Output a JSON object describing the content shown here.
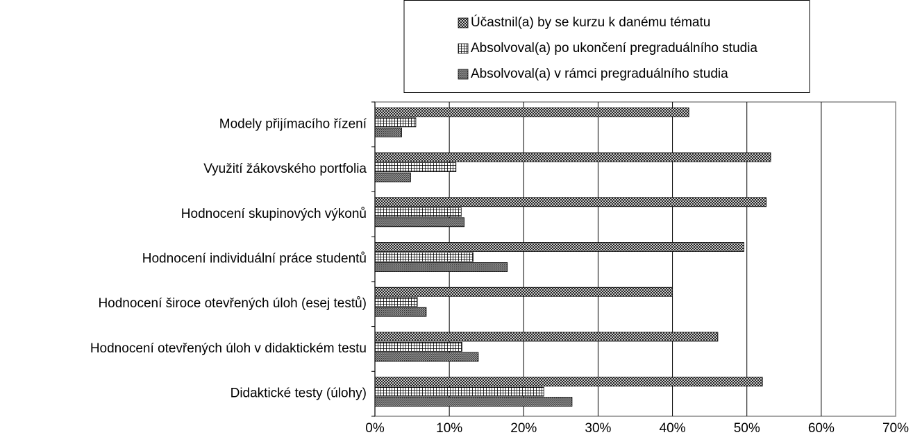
{
  "chart_data": {
    "type": "bar",
    "orientation": "horizontal",
    "categories": [
      "Modely přijímacího řízení",
      "Využití žákovského portfolia",
      "Hodnocení skupinových výkonů",
      "Hodnocení individuální práce studentů",
      "Hodnocení široce otevřených úloh (esej testů)",
      "Hodnocení otevřených úloh v didaktickém testu",
      "Didaktické testy (úlohy)"
    ],
    "series": [
      {
        "name": "Účastnil(a) by se kurzu k danému tématu",
        "values": [
          42.2,
          53.2,
          52.6,
          49.6,
          40.0,
          46.1,
          52.1
        ]
      },
      {
        "name": "Absolvoval(a) po ukončení pregraduálního studia",
        "values": [
          5.5,
          10.9,
          11.6,
          13.2,
          5.7,
          11.7,
          22.7
        ]
      },
      {
        "name": "Absolvoval(a) v rámci pregraduálního studia",
        "values": [
          3.6,
          4.8,
          12.0,
          17.8,
          6.9,
          13.9,
          26.5
        ]
      }
    ],
    "xlim": [
      0,
      70
    ],
    "xticks": [
      {
        "value": 0,
        "label": "0%"
      },
      {
        "value": 10,
        "label": "10%"
      },
      {
        "value": 20,
        "label": "20%"
      },
      {
        "value": 30,
        "label": "30%"
      },
      {
        "value": 40,
        "label": "40%"
      },
      {
        "value": 50,
        "label": "50%"
      },
      {
        "value": 60,
        "label": "60%"
      },
      {
        "value": 70,
        "label": "70%"
      }
    ],
    "grid": true,
    "legend": "top"
  }
}
